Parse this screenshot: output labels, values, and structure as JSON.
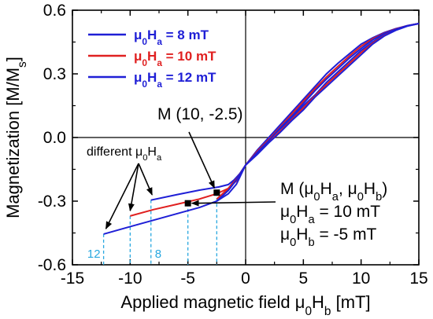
{
  "chart_data": {
    "type": "line",
    "xlabel": "Applied magnetic field μ0Hb [mT]",
    "ylabel": "Magnetization [M/Ms]",
    "xlim": [
      -15,
      15
    ],
    "ylim": [
      -0.6,
      0.6
    ],
    "xticks": [
      -15,
      -10,
      -5,
      0,
      5,
      10,
      15
    ],
    "yticks": [
      -0.6,
      -0.3,
      0.0,
      0.3,
      0.6
    ],
    "xtick_labels": [
      "-15",
      "-10",
      "-5",
      "0",
      "5",
      "10",
      "15"
    ],
    "ytick_labels": [
      "-0.6",
      "-0.3",
      "0.0",
      "0.3",
      "0.6"
    ],
    "grid": false,
    "legend_position": "top-left",
    "series": [
      {
        "name": "μ0Ha = 8 mT",
        "color": "#1f1fd6",
        "upper": {
          "x": [
            -8.2,
            -6,
            -4,
            -2.3,
            -1.5,
            -1,
            -0.5,
            0,
            1,
            2,
            3,
            4,
            5,
            6,
            7,
            8,
            9,
            10,
            11,
            12,
            13,
            14,
            15
          ],
          "y": [
            -0.295,
            -0.27,
            -0.248,
            -0.233,
            -0.222,
            -0.2,
            -0.17,
            -0.13,
            -0.06,
            0.0,
            0.06,
            0.12,
            0.18,
            0.24,
            0.3,
            0.35,
            0.395,
            0.44,
            0.47,
            0.495,
            0.513,
            0.527,
            0.537
          ]
        },
        "lower": {
          "x": [
            -2.3,
            -1.5,
            -1,
            -0.5,
            0,
            1,
            2,
            3,
            4,
            5,
            6,
            7,
            8,
            9,
            10,
            11,
            12,
            13,
            14,
            15
          ],
          "y": [
            -0.29,
            -0.24,
            -0.205,
            -0.17,
            -0.13,
            -0.07,
            -0.01,
            0.04,
            0.09,
            0.15,
            0.2,
            0.26,
            0.31,
            0.36,
            0.41,
            0.45,
            0.485,
            0.51,
            0.527,
            0.537
          ]
        }
      },
      {
        "name": "μ0Ha = 10 mT",
        "color": "#e02020",
        "upper": {
          "x": [
            -10,
            -8,
            -6,
            -4,
            -2.5,
            -1.5,
            -0.7,
            0,
            1,
            2,
            3,
            4,
            5,
            6,
            7,
            8,
            9,
            10,
            11,
            12,
            13,
            14,
            15
          ],
          "y": [
            -0.37,
            -0.34,
            -0.315,
            -0.29,
            -0.265,
            -0.24,
            -0.2,
            -0.13,
            -0.065,
            -0.01,
            0.05,
            0.11,
            0.17,
            0.23,
            0.285,
            0.335,
            0.385,
            0.43,
            0.465,
            0.492,
            0.512,
            0.527,
            0.537
          ]
        },
        "lower": {
          "x": [
            -2.5,
            -1.5,
            -0.7,
            0,
            1,
            2,
            3,
            4,
            5,
            6,
            7,
            8,
            9,
            10,
            11,
            12,
            13,
            14,
            15
          ],
          "y": [
            -0.29,
            -0.24,
            -0.19,
            -0.13,
            -0.075,
            -0.02,
            0.03,
            0.085,
            0.14,
            0.195,
            0.25,
            0.3,
            0.35,
            0.4,
            0.445,
            0.48,
            0.507,
            0.526,
            0.537
          ]
        }
      },
      {
        "name": "μ0Ha = 12 mT",
        "color": "#1f1fd6",
        "upper": {
          "x": [
            -12.3,
            -10,
            -8,
            -6,
            -4,
            -2.5,
            -1.5,
            -0.8,
            0,
            1,
            2,
            3,
            4,
            5,
            6,
            7,
            8,
            9,
            10,
            11,
            12,
            13,
            14,
            15
          ],
          "y": [
            -0.455,
            -0.42,
            -0.39,
            -0.36,
            -0.33,
            -0.3,
            -0.265,
            -0.22,
            -0.13,
            -0.07,
            -0.015,
            0.045,
            0.1,
            0.16,
            0.22,
            0.275,
            0.325,
            0.375,
            0.42,
            0.46,
            0.49,
            0.51,
            0.527,
            0.537
          ]
        },
        "lower": {
          "x": [
            -2.5,
            -1.5,
            -0.8,
            0,
            1,
            2,
            3,
            4,
            5,
            6,
            7,
            8,
            9,
            10,
            11,
            12,
            13,
            14,
            15
          ],
          "y": [
            -0.3,
            -0.25,
            -0.2,
            -0.13,
            -0.08,
            -0.025,
            0.025,
            0.08,
            0.13,
            0.19,
            0.24,
            0.29,
            0.34,
            0.39,
            0.44,
            0.478,
            0.505,
            0.525,
            0.537
          ]
        }
      }
    ],
    "points": [
      {
        "x": -2.5,
        "y": -0.26,
        "label": "M (10, -2.5)"
      },
      {
        "x": -5,
        "y": -0.31,
        "label": ""
      }
    ],
    "annotations": {
      "different_label": "different μ0Ha",
      "point_label": "M (10, -2.5)",
      "box_line1": "M (μ0Ha, μ0Hb)",
      "box_line2": "μ0Ha = 10 mT",
      "box_line3": "μ0Hb = -5 mT",
      "guide_label_12": "12",
      "guide_label_8": "8"
    },
    "guide_lines_x": [
      -12.3,
      -10,
      -8.2,
      -5,
      -2.5
    ],
    "colors": {
      "blue": "#1f1fd6",
      "red": "#e02020",
      "guide": "#29a8e0"
    }
  }
}
